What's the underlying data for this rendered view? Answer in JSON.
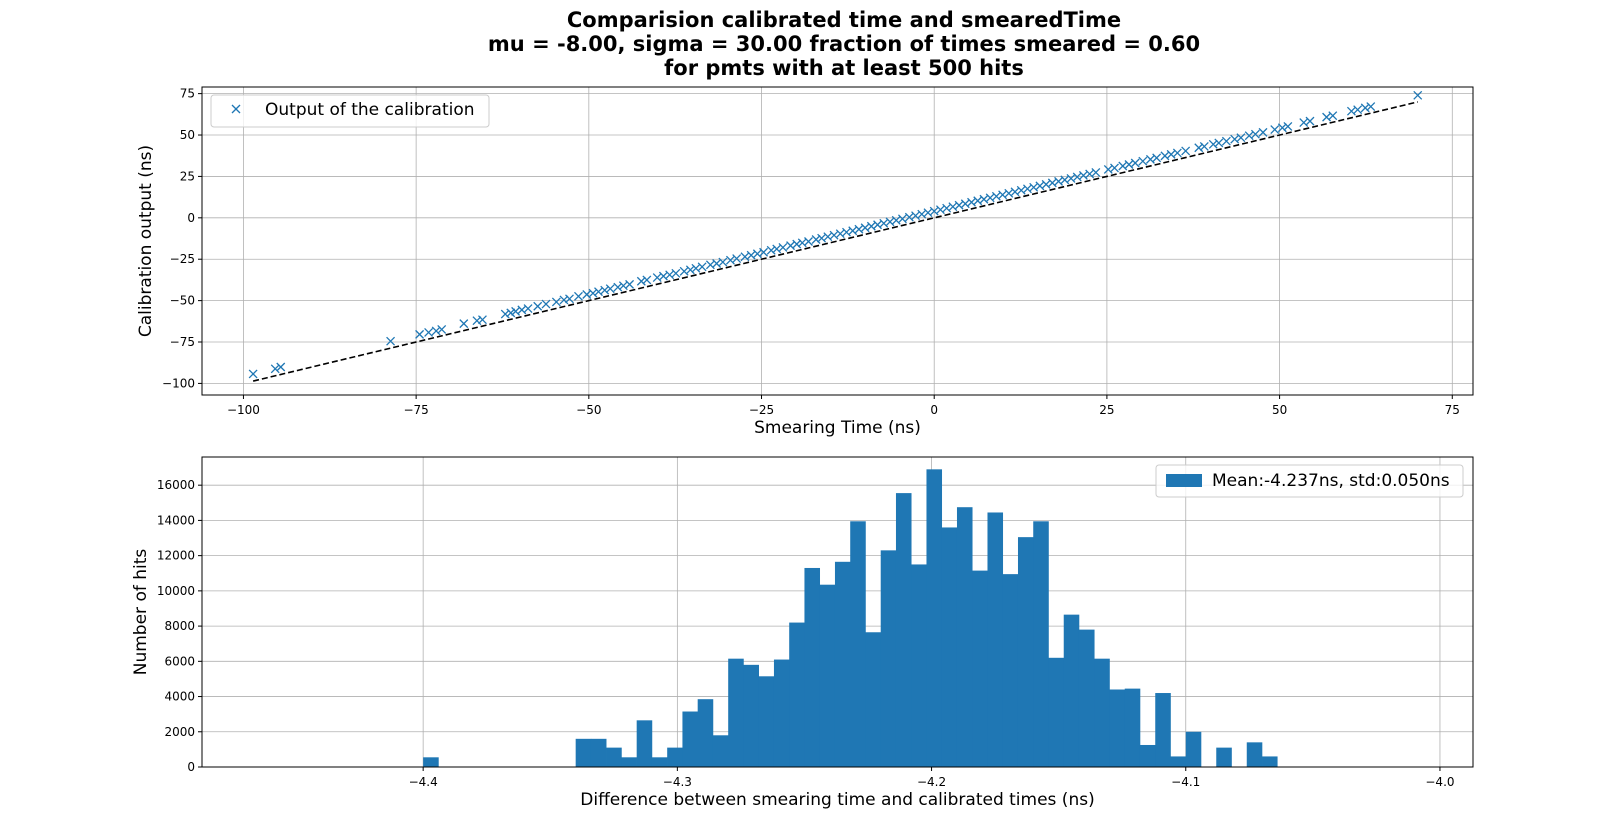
{
  "figure": {
    "title_lines": [
      "Comparision calibrated time and smearedTime",
      "mu = -8.00, sigma = 30.00 fraction of times smeared = 0.60",
      "for pmts with at least 500 hits"
    ]
  },
  "chart_data": [
    {
      "type": "scatter",
      "xlabel": "Smearing Time (ns)",
      "ylabel": "Calibration output (ns)",
      "xlim": [
        -106,
        78
      ],
      "ylim": [
        -107,
        79
      ],
      "xticks": [
        -100,
        -75,
        -50,
        -25,
        0,
        25,
        50,
        75
      ],
      "yticks": [
        -100,
        -75,
        -50,
        -25,
        0,
        25,
        50,
        75
      ],
      "xtick_labels": [
        "−100",
        "−75",
        "−50",
        "−25",
        "0",
        "25",
        "50",
        "75"
      ],
      "ytick_labels": [
        "−100",
        "−75",
        "−50",
        "−25",
        "0",
        "25",
        "50",
        "75"
      ],
      "grid": true,
      "legend": {
        "position": "top-left",
        "entries": [
          "Output of the calibration"
        ]
      },
      "series": [
        {
          "name": "Output of the calibration",
          "marker": "x",
          "color": "#1f77b4",
          "x": [
            -98.6,
            -95.4,
            -94.6,
            -78.7,
            -74.5,
            -73.2,
            -72.1,
            -71.3,
            -68.1,
            -66.2,
            -65.4,
            -62.1,
            -61.3,
            -60.6,
            -59.7,
            -58.8,
            -57.4,
            -56.2,
            -54.7,
            -53.6,
            -52.8,
            -51.5,
            -50.3,
            -49.4,
            -48.6,
            -47.7,
            -46.9,
            -45.8,
            -45.0,
            -44.1,
            -42.4,
            -41.6,
            -40.1,
            -39.2,
            -38.3,
            -37.4,
            -36.2,
            -35.3,
            -34.5,
            -33.6,
            -32.4,
            -31.5,
            -30.6,
            -29.5,
            -28.6,
            -27.4,
            -26.5,
            -25.6,
            -24.7,
            -23.6,
            -22.8,
            -21.9,
            -20.8,
            -19.9,
            -19.1,
            -18.2,
            -17.1,
            -16.3,
            -15.4,
            -14.5,
            -13.6,
            -12.7,
            -11.8,
            -10.9,
            -10.0,
            -9.1,
            -8.2,
            -7.3,
            -6.4,
            -5.5,
            -4.6,
            -3.6,
            -2.7,
            -1.8,
            -0.9,
            0.0,
            0.9,
            1.8,
            2.7,
            3.6,
            4.5,
            5.4,
            6.3,
            7.2,
            8.1,
            9.0,
            9.9,
            10.8,
            11.7,
            12.6,
            13.5,
            14.4,
            15.3,
            16.2,
            17.1,
            18.0,
            18.9,
            19.8,
            20.7,
            21.6,
            22.5,
            23.4,
            25.2,
            26.1,
            27.3,
            28.2,
            29.1,
            30.2,
            31.3,
            32.2,
            33.4,
            34.3,
            35.2,
            36.4,
            38.3,
            39.1,
            40.4,
            41.2,
            42.3,
            43.5,
            44.4,
            45.6,
            46.5,
            47.6,
            49.3,
            50.4,
            51.2,
            53.5,
            54.4,
            56.8,
            57.7,
            60.4,
            61.3,
            62.4,
            63.2,
            70.0
          ],
          "y": [
            -94.3,
            -91.2,
            -90.1,
            -74.5,
            -70.4,
            -69.2,
            -68.3,
            -67.4,
            -63.9,
            -62.1,
            -61.5,
            -58.1,
            -57.4,
            -56.5,
            -55.6,
            -54.8,
            -53.4,
            -52.1,
            -50.8,
            -49.6,
            -48.9,
            -47.4,
            -46.3,
            -45.5,
            -44.6,
            -43.7,
            -42.8,
            -41.9,
            -41.0,
            -40.2,
            -38.3,
            -37.5,
            -36.1,
            -35.2,
            -34.4,
            -33.5,
            -32.3,
            -31.4,
            -30.5,
            -29.6,
            -28.4,
            -27.6,
            -26.7,
            -25.6,
            -24.6,
            -23.5,
            -22.6,
            -21.7,
            -20.8,
            -19.6,
            -18.8,
            -17.9,
            -16.8,
            -15.9,
            -15.1,
            -14.3,
            -13.1,
            -12.3,
            -11.4,
            -10.5,
            -9.6,
            -8.7,
            -7.8,
            -6.9,
            -6.0,
            -5.1,
            -4.2,
            -3.3,
            -2.4,
            -1.5,
            -0.6,
            0.4,
            1.3,
            2.2,
            3.1,
            4.0,
            4.9,
            5.8,
            6.7,
            7.6,
            8.5,
            9.4,
            10.3,
            11.2,
            12.1,
            13.0,
            13.9,
            14.8,
            15.7,
            16.6,
            17.5,
            18.4,
            19.3,
            20.2,
            21.1,
            22.0,
            22.9,
            23.8,
            24.7,
            25.6,
            26.5,
            27.4,
            29.2,
            30.1,
            31.3,
            32.2,
            33.1,
            34.2,
            35.3,
            36.2,
            37.4,
            38.3,
            39.2,
            40.4,
            42.3,
            43.1,
            44.4,
            45.2,
            46.3,
            47.5,
            48.4,
            49.6,
            50.5,
            51.6,
            53.3,
            54.4,
            55.2,
            57.5,
            58.4,
            60.8,
            61.7,
            64.4,
            65.3,
            66.4,
            67.2,
            74.0
          ]
        },
        {
          "name": "",
          "style": "dashed",
          "color": "#000000",
          "x": [
            -98.6,
            70.0
          ],
          "y": [
            -98.6,
            70.0
          ]
        }
      ]
    },
    {
      "type": "bar",
      "xlabel": "Difference between smearing time and calibrated times (ns)",
      "ylabel": "Number of hits",
      "xlim": [
        -4.487,
        -3.987
      ],
      "ylim": [
        0,
        17600
      ],
      "xticks": [
        -4.4,
        -4.3,
        -4.2,
        -4.1,
        -4.0
      ],
      "yticks": [
        0,
        2000,
        4000,
        6000,
        8000,
        10000,
        12000,
        14000,
        16000
      ],
      "xtick_labels": [
        "−4.4",
        "−4.3",
        "−4.2",
        "−4.1",
        "−4.0"
      ],
      "ytick_labels": [
        "0",
        "2000",
        "4000",
        "6000",
        "8000",
        "10000",
        "12000",
        "14000",
        "16000"
      ],
      "grid": true,
      "legend": {
        "position": "top-right",
        "entries": [
          "Mean:-4.237ns, std:0.050ns"
        ]
      },
      "bin_start": -4.4,
      "bin_width": 0.006,
      "series": [
        {
          "name": "Mean:-4.237ns, std:0.050ns",
          "color": "#1f77b4",
          "values": [
            550,
            0,
            0,
            0,
            0,
            0,
            0,
            0,
            0,
            0,
            1600,
            1600,
            1100,
            550,
            2650,
            550,
            1100,
            3150,
            3850,
            1800,
            6150,
            5800,
            5150,
            6100,
            8200,
            11300,
            10350,
            11650,
            13950,
            7650,
            12300,
            15550,
            11500,
            16900,
            13600,
            14750,
            11150,
            14450,
            10950,
            13050,
            13950,
            6200,
            8650,
            7800,
            6150,
            4400,
            4450,
            1250,
            4200,
            600,
            2000,
            0,
            1100,
            0,
            1400,
            600
          ]
        }
      ]
    }
  ]
}
